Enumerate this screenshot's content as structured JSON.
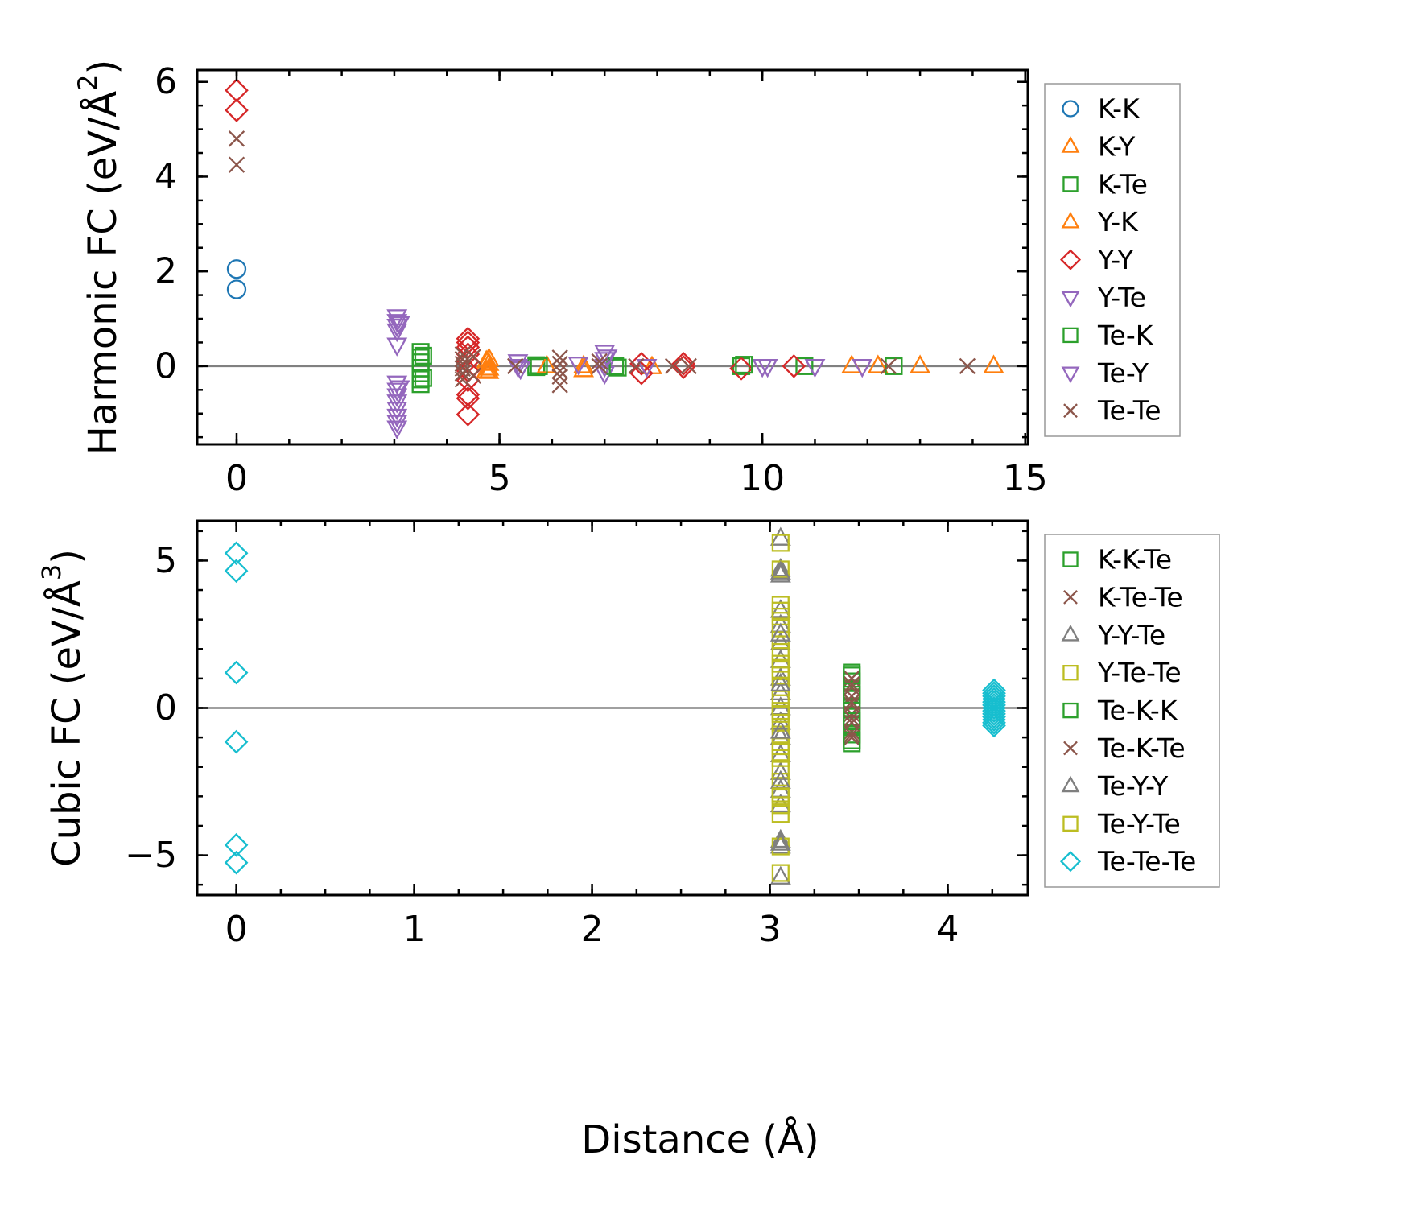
{
  "chart_data": [
    {
      "type": "scatter",
      "ylabel_main": "Harmonic FC (eV/Å",
      "ylabel_sup": "2",
      "ylabel_close": ")",
      "xlabel": "",
      "xlim": [
        -0.75,
        15.05
      ],
      "ylim": [
        -1.65,
        6.25
      ],
      "xticks": [
        0,
        5,
        10,
        15
      ],
      "xtick_labels": [
        "0",
        "5",
        "10",
        "15"
      ],
      "xminor": 1,
      "yticks": [
        0,
        2,
        4,
        6
      ],
      "ytick_labels": [
        "0",
        "2",
        "4",
        "6"
      ],
      "yminor": 0.5,
      "zero_line": true,
      "legend_position": "outside-right",
      "series": [
        {
          "name": "K-K",
          "color": "#1f77b4",
          "marker": "circle",
          "points": [
            [
              0,
              2.05
            ],
            [
              0,
              1.62
            ]
          ]
        },
        {
          "name": "K-Y",
          "color": "#ff7f0e",
          "marker": "triangle-up",
          "points": [
            [
              4.8,
              0.15
            ],
            [
              4.8,
              0.05
            ],
            [
              4.8,
              -0.05
            ],
            [
              4.8,
              -0.12
            ],
            [
              6.6,
              0.0
            ],
            [
              6.6,
              -0.08
            ],
            [
              7.9,
              -0.02
            ],
            [
              12.2,
              0.0
            ],
            [
              13.0,
              0.0
            ],
            [
              14.4,
              0.0
            ]
          ]
        },
        {
          "name": "K-Te",
          "color": "#2ca02c",
          "marker": "square",
          "points": [
            [
              3.5,
              0.3
            ],
            [
              3.5,
              0.18
            ],
            [
              3.5,
              0.08
            ],
            [
              3.5,
              -0.05
            ],
            [
              3.5,
              -0.15
            ],
            [
              3.5,
              -0.28
            ],
            [
              3.5,
              -0.38
            ],
            [
              5.7,
              0.02
            ],
            [
              5.7,
              -0.02
            ],
            [
              7.2,
              0.0
            ],
            [
              9.6,
              0.0
            ],
            [
              10.8,
              0.0
            ],
            [
              12.5,
              0.0
            ]
          ]
        },
        {
          "name": "Y-K",
          "color": "#ff7f0e",
          "marker": "triangle-up",
          "points": [
            [
              4.75,
              0.1
            ],
            [
              4.75,
              -0.1
            ],
            [
              5.9,
              0.0
            ],
            [
              11.7,
              0.0
            ]
          ]
        },
        {
          "name": "Y-Y",
          "color": "#d62728",
          "marker": "diamond",
          "points": [
            [
              0,
              5.82
            ],
            [
              0,
              5.4
            ],
            [
              4.4,
              0.58
            ],
            [
              4.4,
              0.5
            ],
            [
              4.4,
              0.4
            ],
            [
              4.4,
              0.25
            ],
            [
              4.4,
              0.1
            ],
            [
              4.4,
              -0.1
            ],
            [
              4.4,
              -0.3
            ],
            [
              4.4,
              -0.6
            ],
            [
              4.4,
              -0.68
            ],
            [
              4.4,
              -1.02
            ],
            [
              7.7,
              0.05
            ],
            [
              7.7,
              -0.15
            ],
            [
              8.5,
              0.05
            ],
            [
              8.5,
              -0.02
            ],
            [
              9.6,
              -0.05
            ],
            [
              10.6,
              0.0
            ]
          ]
        },
        {
          "name": "Y-Te",
          "color": "#9467bd",
          "marker": "triangle-down",
          "points": [
            [
              3.05,
              1.05
            ],
            [
              3.05,
              0.95
            ],
            [
              3.05,
              0.85
            ],
            [
              3.05,
              0.75
            ],
            [
              3.05,
              0.45
            ],
            [
              3.05,
              -0.35
            ],
            [
              3.05,
              -0.5
            ],
            [
              3.05,
              -0.62
            ],
            [
              3.05,
              -0.75
            ],
            [
              3.05,
              -0.9
            ],
            [
              3.05,
              -1.05
            ],
            [
              3.05,
              -1.18
            ],
            [
              3.05,
              -1.3
            ],
            [
              5.35,
              0.1
            ],
            [
              5.35,
              0.0
            ],
            [
              6.5,
              0.05
            ],
            [
              7.0,
              0.3
            ],
            [
              7.0,
              0.15
            ],
            [
              7.0,
              0.0
            ],
            [
              7.0,
              -0.15
            ],
            [
              7.8,
              0.0
            ],
            [
              10.0,
              0.0
            ],
            [
              11.0,
              0.0
            ],
            [
              11.9,
              0.0
            ]
          ]
        },
        {
          "name": "Te-K",
          "color": "#2ca02c",
          "marker": "square",
          "points": [
            [
              3.55,
              0.22
            ],
            [
              3.55,
              -0.25
            ],
            [
              5.75,
              0.0
            ],
            [
              7.25,
              -0.03
            ],
            [
              9.65,
              0.03
            ]
          ]
        },
        {
          "name": "Te-Y",
          "color": "#9467bd",
          "marker": "triangle-down",
          "points": [
            [
              3.1,
              0.9
            ],
            [
              3.1,
              -0.45
            ],
            [
              5.4,
              -0.05
            ],
            [
              7.05,
              0.2
            ],
            [
              10.1,
              0.0
            ]
          ]
        },
        {
          "name": "Te-Te",
          "color": "#8c564b",
          "marker": "x",
          "points": [
            [
              0,
              4.8
            ],
            [
              0,
              4.25
            ],
            [
              4.3,
              0.25
            ],
            [
              4.3,
              0.15
            ],
            [
              4.3,
              0.05
            ],
            [
              4.3,
              -0.05
            ],
            [
              4.3,
              -0.15
            ],
            [
              4.3,
              -0.28
            ],
            [
              4.5,
              0.2
            ],
            [
              4.5,
              -0.2
            ],
            [
              5.3,
              0.0
            ],
            [
              6.15,
              0.18
            ],
            [
              6.15,
              0.05
            ],
            [
              6.15,
              -0.1
            ],
            [
              6.15,
              -0.22
            ],
            [
              6.15,
              -0.4
            ],
            [
              6.9,
              0.1
            ],
            [
              6.9,
              0.0
            ],
            [
              7.6,
              0.0
            ],
            [
              8.3,
              0.0
            ],
            [
              8.6,
              0.0
            ],
            [
              12.4,
              0.0
            ],
            [
              13.9,
              0.0
            ]
          ]
        }
      ]
    },
    {
      "type": "scatter",
      "ylabel_main": "Cubic FC (eV/Å",
      "ylabel_sup": "3",
      "ylabel_close": ")",
      "xlabel": "Distance (Å)",
      "xlim": [
        -0.22,
        4.45
      ],
      "ylim": [
        -6.35,
        6.35
      ],
      "xticks": [
        0,
        1,
        2,
        3,
        4
      ],
      "xtick_labels": [
        "0",
        "1",
        "2",
        "3",
        "4"
      ],
      "xminor": 0.25,
      "yticks": [
        -5,
        0,
        5
      ],
      "ytick_labels": [
        "−5",
        "0",
        "5"
      ],
      "yminor": 1,
      "zero_line": true,
      "legend_position": "outside-right",
      "series": [
        {
          "name": "K-K-Te",
          "color": "#2ca02c",
          "marker": "square",
          "points": [
            [
              3.46,
              1.2
            ],
            [
              3.46,
              0.9
            ],
            [
              3.46,
              0.6
            ],
            [
              3.46,
              0.3
            ],
            [
              3.46,
              0.0
            ],
            [
              3.46,
              -0.3
            ],
            [
              3.46,
              -0.6
            ],
            [
              3.46,
              -0.9
            ],
            [
              3.46,
              -1.2
            ]
          ]
        },
        {
          "name": "K-Te-Te",
          "color": "#8c564b",
          "marker": "x",
          "points": [
            [
              3.46,
              1.0
            ],
            [
              3.46,
              0.7
            ],
            [
              3.46,
              0.4
            ],
            [
              3.46,
              0.1
            ],
            [
              3.46,
              -0.2
            ],
            [
              3.46,
              -0.5
            ],
            [
              3.46,
              -0.8
            ],
            [
              3.46,
              -1.0
            ]
          ]
        },
        {
          "name": "Y-Y-Te",
          "color": "#7f7f7f",
          "marker": "triangle-up",
          "points": [
            [
              3.06,
              5.75
            ],
            [
              3.06,
              4.7
            ],
            [
              3.06,
              4.5
            ],
            [
              3.06,
              3.3
            ],
            [
              3.06,
              2.8
            ],
            [
              3.06,
              2.2
            ],
            [
              3.06,
              1.6
            ],
            [
              3.06,
              1.0
            ],
            [
              3.06,
              0.5
            ],
            [
              3.06,
              0.0
            ],
            [
              3.06,
              -0.5
            ],
            [
              3.06,
              -1.0
            ],
            [
              3.06,
              -1.6
            ],
            [
              3.06,
              -2.2
            ],
            [
              3.06,
              -2.8
            ],
            [
              3.06,
              -3.3
            ],
            [
              3.06,
              -4.5
            ],
            [
              3.06,
              -4.7
            ],
            [
              3.06,
              -5.75
            ]
          ]
        },
        {
          "name": "Y-Te-Te",
          "color": "#bcbd22",
          "marker": "square",
          "points": [
            [
              3.06,
              5.6
            ],
            [
              3.06,
              4.7
            ],
            [
              3.06,
              3.5
            ],
            [
              3.06,
              3.1
            ],
            [
              3.06,
              2.7
            ],
            [
              3.06,
              2.3
            ],
            [
              3.06,
              1.9
            ],
            [
              3.06,
              1.5
            ],
            [
              3.06,
              1.1
            ],
            [
              3.06,
              0.7
            ],
            [
              3.06,
              0.3
            ],
            [
              3.06,
              -0.1
            ],
            [
              3.06,
              -0.5
            ],
            [
              3.06,
              -0.9
            ],
            [
              3.06,
              -1.3
            ],
            [
              3.06,
              -1.7
            ],
            [
              3.06,
              -2.1
            ],
            [
              3.06,
              -2.5
            ],
            [
              3.06,
              -2.9
            ],
            [
              3.06,
              -3.3
            ],
            [
              3.06,
              -3.6
            ],
            [
              3.06,
              -4.7
            ],
            [
              3.06,
              -5.6
            ]
          ]
        },
        {
          "name": "Te-K-K",
          "color": "#2ca02c",
          "marker": "square",
          "points": [
            [
              3.46,
              1.1
            ],
            [
              3.46,
              0.45
            ],
            [
              3.46,
              -0.45
            ],
            [
              3.46,
              -1.1
            ]
          ]
        },
        {
          "name": "Te-K-Te",
          "color": "#8c564b",
          "marker": "x",
          "points": [
            [
              3.46,
              0.8
            ],
            [
              3.46,
              0.2
            ],
            [
              3.46,
              -0.35
            ],
            [
              3.46,
              -0.9
            ]
          ]
        },
        {
          "name": "Te-Y-Y",
          "color": "#7f7f7f",
          "marker": "triangle-up",
          "points": [
            [
              3.06,
              4.6
            ],
            [
              3.06,
              2.5
            ],
            [
              3.06,
              0.8
            ],
            [
              3.06,
              -0.8
            ],
            [
              3.06,
              -2.5
            ],
            [
              3.06,
              -4.6
            ]
          ]
        },
        {
          "name": "Te-Y-Te",
          "color": "#bcbd22",
          "marker": "square",
          "points": [
            [
              3.06,
              3.3
            ],
            [
              3.06,
              1.3
            ],
            [
              3.06,
              -0.2
            ],
            [
              3.06,
              -1.5
            ],
            [
              3.06,
              -3.0
            ]
          ]
        },
        {
          "name": "Te-Te-Te",
          "color": "#17becf",
          "marker": "diamond",
          "points": [
            [
              0,
              5.25
            ],
            [
              0,
              4.65
            ],
            [
              0,
              1.2
            ],
            [
              0,
              -1.15
            ],
            [
              0,
              -4.65
            ],
            [
              0,
              -5.25
            ],
            [
              4.26,
              0.6
            ],
            [
              4.26,
              0.5
            ],
            [
              4.26,
              0.4
            ],
            [
              4.26,
              0.3
            ],
            [
              4.26,
              0.2
            ],
            [
              4.26,
              0.1
            ],
            [
              4.26,
              0.0
            ],
            [
              4.26,
              -0.1
            ],
            [
              4.26,
              -0.2
            ],
            [
              4.26,
              -0.3
            ],
            [
              4.26,
              -0.4
            ],
            [
              4.26,
              -0.5
            ],
            [
              4.26,
              -0.6
            ]
          ]
        }
      ]
    }
  ]
}
